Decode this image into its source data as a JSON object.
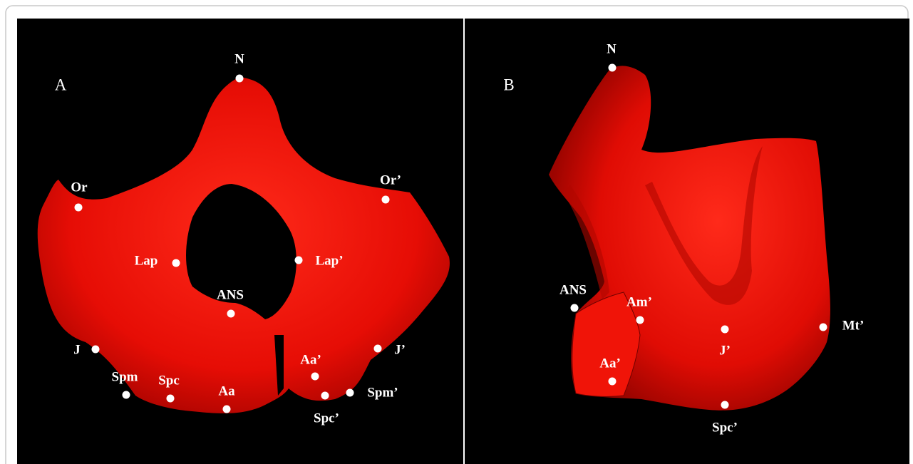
{
  "panels": [
    {
      "label": "A",
      "landmarks": [
        "N",
        "Or",
        "Or’",
        "Lap",
        "Lap’",
        "ANS",
        "J",
        "J’",
        "Spm",
        "Spc",
        "Aa",
        "Aa’",
        "Spc’",
        "Spm’"
      ]
    },
    {
      "label": "B",
      "landmarks": [
        "N",
        "ANS",
        "Am’",
        "Aa’",
        "J’",
        "Mt’",
        "Spc’"
      ]
    }
  ]
}
